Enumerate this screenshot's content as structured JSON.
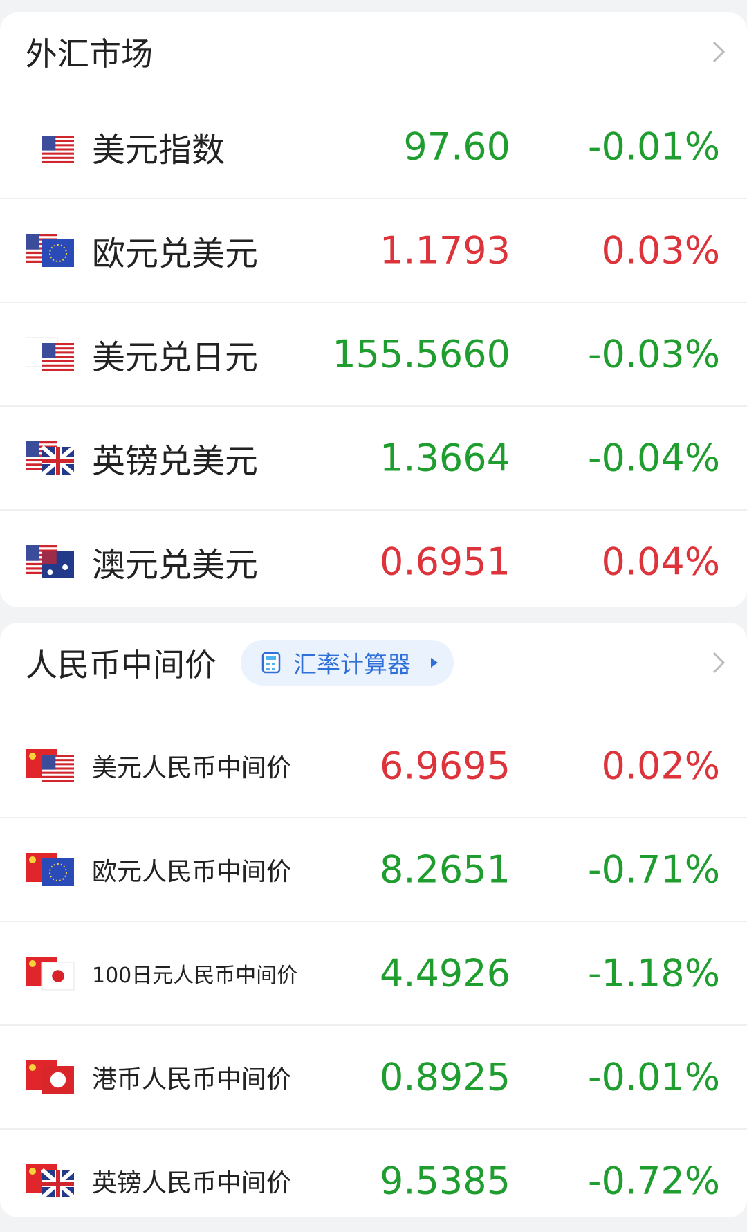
{
  "sections": [
    {
      "title": "外汇市场",
      "rows": [
        {
          "name": "美元指数",
          "price": "97.60",
          "change": "-0.01%"
        },
        {
          "name": "欧元兑美元",
          "price": "1.1793",
          "change": "0.03%"
        },
        {
          "name": "美元兑日元",
          "price": "155.5660",
          "change": "-0.03%"
        },
        {
          "name": "英镑兑美元",
          "price": "1.3664",
          "change": "-0.04%"
        },
        {
          "name": "澳元兑美元",
          "price": "0.6951",
          "change": "0.04%"
        }
      ]
    },
    {
      "title": "人民币中间价",
      "badge": "汇率计算器",
      "rows": [
        {
          "name": "美元人民币中间价",
          "price": "6.9695",
          "change": "0.02%"
        },
        {
          "name": "欧元人民币中间价",
          "price": "8.2651",
          "change": "-0.71%"
        },
        {
          "name": "100日元人民币中间价",
          "price": "4.4926",
          "change": "-1.18%"
        },
        {
          "name": "港币人民币中间价",
          "price": "0.8925",
          "change": "-0.01%"
        },
        {
          "name": "英镑人民币中间价",
          "price": "9.5385",
          "change": "-0.72%"
        }
      ]
    }
  ]
}
